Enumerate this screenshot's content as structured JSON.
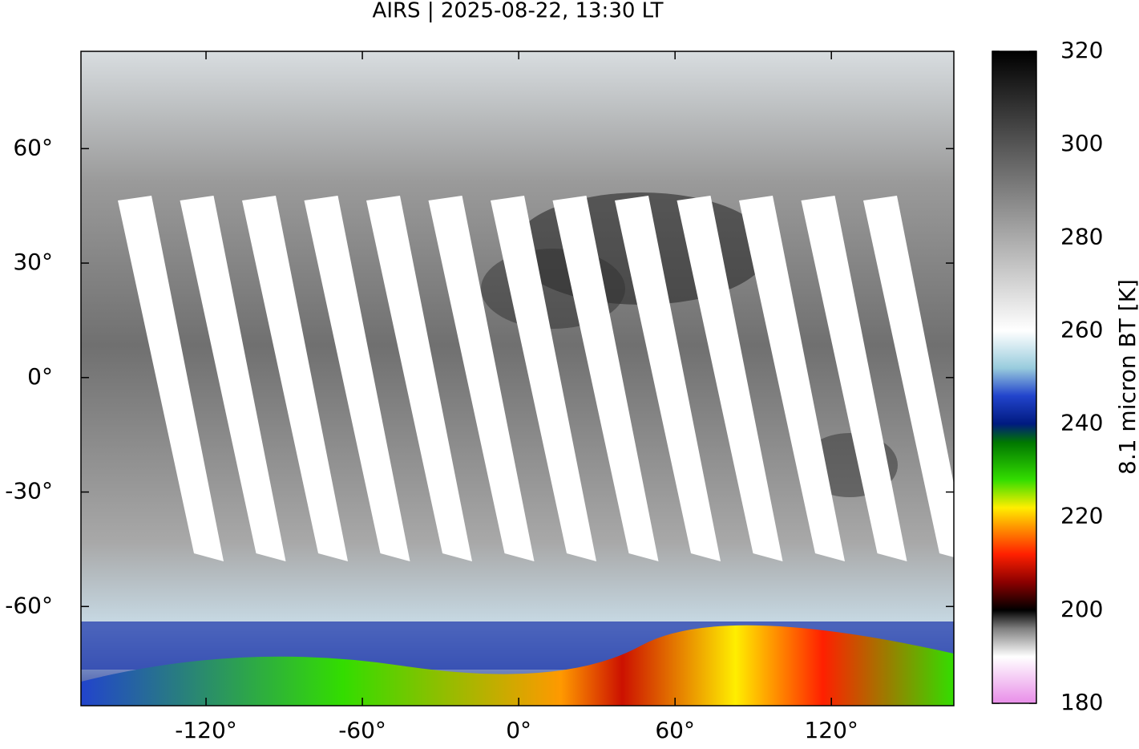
{
  "chart_data": {
    "type": "map",
    "title": "AIRS | 2025-08-22, 13:30 LT",
    "xlim": [
      -168,
      167
    ],
    "ylim": [
      -86,
      85.5
    ],
    "xticks": [
      {
        "value": -120,
        "label": "-120°"
      },
      {
        "value": -60,
        "label": "-60°"
      },
      {
        "value": 0,
        "label": "0°"
      },
      {
        "value": 60,
        "label": "60°"
      },
      {
        "value": 120,
        "label": "120°"
      }
    ],
    "yticks": [
      {
        "value": -60,
        "label": "-60°"
      },
      {
        "value": -30,
        "label": "-30°"
      },
      {
        "value": 0,
        "label": "0°"
      },
      {
        "value": 30,
        "label": "30°"
      },
      {
        "value": 60,
        "label": "60°"
      }
    ],
    "colorbar": {
      "label": "8.1 micron BT [K]",
      "lim": [
        180,
        320
      ],
      "ticks": [
        180,
        200,
        220,
        240,
        260,
        280,
        300,
        320
      ],
      "colormap": [
        {
          "value": 180,
          "color": "#e88ee8"
        },
        {
          "value": 190,
          "color": "#ffffff"
        },
        {
          "value": 196,
          "color": "#808080"
        },
        {
          "value": 200,
          "color": "#000000"
        },
        {
          "value": 206,
          "color": "#8b0000"
        },
        {
          "value": 212,
          "color": "#ff2000"
        },
        {
          "value": 218,
          "color": "#ff9900"
        },
        {
          "value": 222,
          "color": "#ffee00"
        },
        {
          "value": 228,
          "color": "#33dd00"
        },
        {
          "value": 236,
          "color": "#007700"
        },
        {
          "value": 240,
          "color": "#001a80"
        },
        {
          "value": 246,
          "color": "#2244cc"
        },
        {
          "value": 252,
          "color": "#99ccdd"
        },
        {
          "value": 260,
          "color": "#ffffff"
        },
        {
          "value": 320,
          "color": "#000000"
        }
      ]
    }
  }
}
